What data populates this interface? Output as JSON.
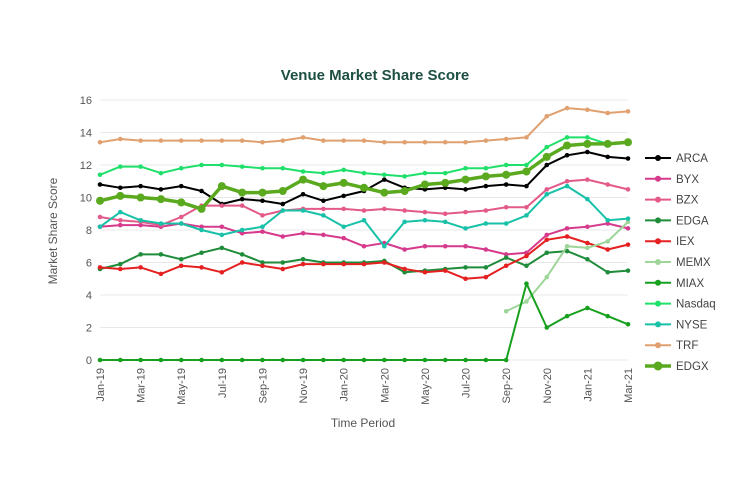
{
  "chart_data": {
    "type": "line",
    "title": "Venue Market Share Score",
    "xlabel": "Time Period",
    "ylabel": "Market Share Score",
    "ylim": [
      0,
      16
    ],
    "yticks": [
      0,
      2,
      4,
      6,
      8,
      10,
      12,
      14,
      16
    ],
    "grid": true,
    "legend_position": "right",
    "x": [
      "Jan-19",
      "Feb-19",
      "Mar-19",
      "Apr-19",
      "May-19",
      "Jun-19",
      "Jul-19",
      "Aug-19",
      "Sep-19",
      "Oct-19",
      "Nov-19",
      "Dec-19",
      "Jan-20",
      "Feb-20",
      "Mar-20",
      "Apr-20",
      "May-20",
      "Jun-20",
      "Jul-20",
      "Aug-20",
      "Sep-20",
      "Oct-20",
      "Nov-20",
      "Dec-20",
      "Jan-21",
      "Feb-21",
      "Mar-21"
    ],
    "xtick_labels": [
      "Jan-19",
      "Mar-19",
      "May-19",
      "Jul-19",
      "Sep-19",
      "Nov-19",
      "Jan-20",
      "Mar-20",
      "May-20",
      "Jul-20",
      "Sep-20",
      "Nov-20",
      "Jan-21",
      "Mar-21"
    ],
    "series": [
      {
        "name": "ARCA",
        "color": "#000000",
        "values": [
          10.8,
          10.6,
          10.7,
          10.5,
          10.7,
          10.4,
          9.6,
          9.9,
          9.8,
          9.6,
          10.2,
          9.8,
          10.1,
          10.4,
          11.1,
          10.6,
          10.5,
          10.6,
          10.5,
          10.7,
          10.8,
          10.7,
          12.0,
          12.6,
          12.8,
          12.5,
          12.4
        ]
      },
      {
        "name": "BYX",
        "color": "#d63a8c",
        "values": [
          8.2,
          8.3,
          8.3,
          8.2,
          8.4,
          8.2,
          8.2,
          7.8,
          7.9,
          7.6,
          7.8,
          7.7,
          7.5,
          7.0,
          7.2,
          6.8,
          7.0,
          7.0,
          7.0,
          6.8,
          6.5,
          6.6,
          7.7,
          8.1,
          8.2,
          8.4,
          8.1
        ]
      },
      {
        "name": "BZX",
        "color": "#e35a8a",
        "values": [
          8.8,
          8.6,
          8.5,
          8.3,
          8.8,
          9.5,
          9.5,
          9.5,
          8.9,
          9.2,
          9.3,
          9.3,
          9.3,
          9.2,
          9.3,
          9.2,
          9.1,
          9.0,
          9.1,
          9.2,
          9.4,
          9.4,
          10.5,
          11.0,
          11.1,
          10.8,
          10.5
        ]
      },
      {
        "name": "EDGA",
        "color": "#1e8c3a",
        "values": [
          5.6,
          5.9,
          6.5,
          6.5,
          6.2,
          6.6,
          6.9,
          6.5,
          6.0,
          6.0,
          6.2,
          6.0,
          6.0,
          6.0,
          6.1,
          5.4,
          5.5,
          5.6,
          5.7,
          5.7,
          6.3,
          5.8,
          6.6,
          6.7,
          6.2,
          5.4,
          5.5
        ]
      },
      {
        "name": "IEX",
        "color": "#e52020",
        "values": [
          5.7,
          5.6,
          5.7,
          5.3,
          5.8,
          5.7,
          5.4,
          6.0,
          5.8,
          5.6,
          5.9,
          5.9,
          5.9,
          5.9,
          6.0,
          5.6,
          5.4,
          5.5,
          5.0,
          5.1,
          5.8,
          6.4,
          7.4,
          7.6,
          7.2,
          6.8,
          7.1
        ]
      },
      {
        "name": "MEMX",
        "color": "#9ed69a",
        "values": [
          null,
          null,
          null,
          null,
          null,
          null,
          null,
          null,
          null,
          null,
          null,
          null,
          null,
          null,
          null,
          null,
          null,
          null,
          null,
          null,
          3.0,
          3.6,
          5.1,
          7.0,
          6.9,
          7.3,
          8.5
        ]
      },
      {
        "name": "MIAX",
        "color": "#17a01e",
        "values": [
          0,
          0,
          0,
          0,
          0,
          0,
          0,
          0,
          0,
          0,
          0,
          0,
          0,
          0,
          0,
          0,
          0,
          0,
          0,
          0,
          0,
          4.7,
          2.0,
          2.7,
          3.2,
          2.7,
          2.2
        ]
      },
      {
        "name": "Nasdaq",
        "color": "#1fe06a",
        "values": [
          11.4,
          11.9,
          11.9,
          11.5,
          11.8,
          12.0,
          12.0,
          11.9,
          11.8,
          11.8,
          11.6,
          11.5,
          11.7,
          11.5,
          11.4,
          11.3,
          11.5,
          11.5,
          11.8,
          11.8,
          12.0,
          12.0,
          13.1,
          13.7,
          13.7,
          13.3,
          13.4
        ]
      },
      {
        "name": "NYSE",
        "color": "#18c1a8",
        "values": [
          8.2,
          9.1,
          8.6,
          8.4,
          8.4,
          8.0,
          7.7,
          8.0,
          8.2,
          9.2,
          9.2,
          8.9,
          8.2,
          8.6,
          7.0,
          8.5,
          8.6,
          8.5,
          8.1,
          8.4,
          8.4,
          8.9,
          10.2,
          10.7,
          9.9,
          8.6,
          8.7
        ]
      },
      {
        "name": "TRF",
        "color": "#e0a070",
        "values": [
          13.4,
          13.6,
          13.5,
          13.5,
          13.5,
          13.5,
          13.5,
          13.5,
          13.4,
          13.5,
          13.7,
          13.5,
          13.5,
          13.5,
          13.4,
          13.4,
          13.4,
          13.4,
          13.4,
          13.5,
          13.6,
          13.7,
          15.0,
          15.5,
          15.4,
          15.2,
          15.3
        ]
      },
      {
        "name": "EDGX",
        "color": "#5aa91e",
        "values": [
          9.8,
          10.1,
          10.0,
          9.9,
          9.7,
          9.3,
          10.7,
          10.3,
          10.3,
          10.4,
          11.1,
          10.7,
          10.9,
          10.6,
          10.3,
          10.4,
          10.8,
          10.9,
          11.1,
          11.3,
          11.4,
          11.6,
          12.5,
          13.2,
          13.3,
          13.3,
          13.4
        ]
      }
    ]
  }
}
